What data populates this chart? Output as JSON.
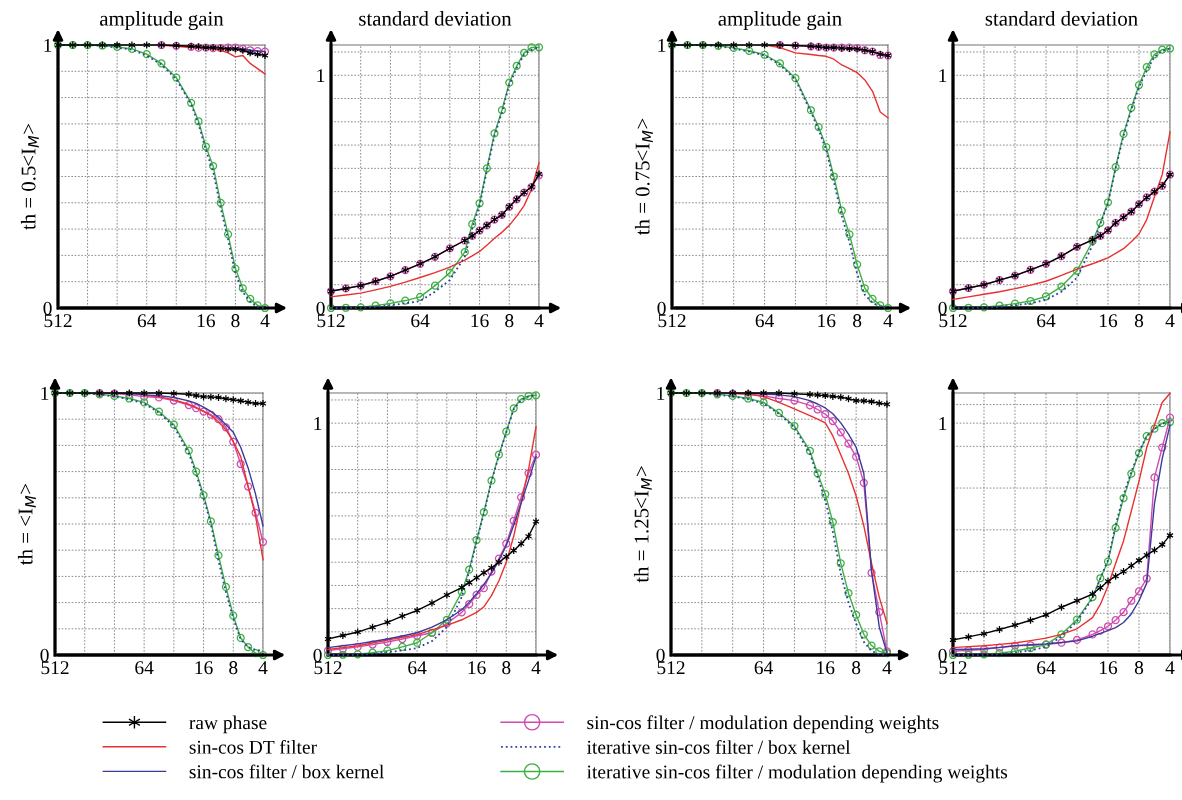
{
  "chart_data": [
    {
      "type": "line",
      "title": "amplitude gain",
      "ylabel": "th = 0.5<I$_{M}$>",
      "legend": "bottom",
      "grid": true,
      "log": "x",
      "xlim": [
        512,
        4
      ],
      "xticks": [
        512,
        {
          "value": 256,
          "label": null
        },
        {
          "value": 128,
          "label": null
        },
        64,
        {
          "value": 32,
          "label": null
        },
        16,
        8,
        4
      ],
      "ylim": [
        0,
        1
      ],
      "yticks": [
        0,
        {
          "value": 0.1,
          "label": null
        },
        {
          "value": 0.2,
          "label": null
        },
        {
          "value": 0.3,
          "label": null
        },
        {
          "value": 0.4,
          "label": null
        },
        {
          "value": 0.5,
          "label": null
        },
        {
          "value": 0.6,
          "label": null
        },
        {
          "value": 0.7,
          "label": null
        },
        {
          "value": 0.8,
          "label": null
        },
        {
          "value": 0.9,
          "label": null
        },
        1
      ],
      "x": [
        512,
        362,
        256,
        181,
        128,
        90.5,
        64,
        45.3,
        32,
        22.6,
        19,
        16,
        13.5,
        11.3,
        9.5,
        8,
        6.73,
        5.66,
        4.76,
        4
      ],
      "series": [
        {
          "name": "raw phase",
          "color": "#000000",
          "marker": "cross",
          "values": [
            1,
            1,
            1,
            1,
            1,
            1,
            1,
            1,
            0.998,
            0.995,
            0.993,
            0.99,
            0.99,
            0.988,
            0.985,
            0.985,
            0.98,
            0.97,
            0.965,
            0.96
          ]
        },
        {
          "name": "sin-cos DT filter",
          "color": "#e8312f",
          "values": [
            null,
            null,
            null,
            null,
            null,
            null,
            null,
            1,
            0.995,
            0.99,
            0.99,
            0.99,
            0.985,
            0.98,
            0.97,
            0.955,
            0.96,
            0.93,
            0.91,
            0.89
          ]
        },
        {
          "name": "sin-cos filter / box kernel",
          "color": "#3a3a9a",
          "values": [
            null,
            null,
            null,
            null,
            null,
            null,
            null,
            null,
            null,
            null,
            null,
            null,
            null,
            null,
            null,
            0.985,
            0.983,
            0.98,
            0.977,
            0.975
          ]
        },
        {
          "name": "sin-cos filter / modulation depending weights",
          "color": "#d04ab0",
          "marker": "circle",
          "values": [
            null,
            null,
            null,
            null,
            null,
            null,
            null,
            1,
            0.997,
            0.993,
            0.99,
            0.99,
            0.988,
            0.988,
            0.99,
            0.99,
            0.985,
            0.98,
            0.977,
            0.975
          ]
        },
        {
          "name": "iterative sin-cos filter / box kernel",
          "color": "#3040a0",
          "line_style": "dotted",
          "values": [
            1,
            1,
            1,
            0.997,
            0.99,
            0.982,
            0.96,
            0.925,
            0.87,
            0.775,
            0.7,
            0.6,
            0.52,
            0.38,
            0.26,
            0.13,
            0.06,
            0.025,
            0.005,
            0
          ]
        },
        {
          "name": "iterative sin-cos filter / modulation depending weights",
          "color": "#3cb043",
          "marker": "circle",
          "values": [
            1,
            1,
            1,
            0.998,
            0.993,
            0.985,
            0.965,
            0.93,
            0.876,
            0.78,
            0.71,
            0.614,
            0.54,
            0.4,
            0.28,
            0.15,
            0.075,
            0.035,
            0.01,
            0
          ]
        }
      ]
    },
    {
      "type": "line",
      "title": "standard deviation",
      "grid": true,
      "log": "x",
      "xlim": [
        512,
        4
      ],
      "xticks": [
        512,
        {
          "value": 256,
          "label": null
        },
        {
          "value": 128,
          "label": null
        },
        64,
        {
          "value": 32,
          "label": null
        },
        16,
        8,
        4
      ],
      "ylim": [
        0,
        1.13
      ],
      "yticks": [
        0,
        {
          "value": 0.1,
          "label": null
        },
        {
          "value": 0.2,
          "label": null
        },
        {
          "value": 0.3,
          "label": null
        },
        {
          "value": 0.4,
          "label": null
        },
        {
          "value": 0.5,
          "label": null
        },
        {
          "value": 0.6,
          "label": null
        },
        {
          "value": 0.7,
          "label": null
        },
        {
          "value": 0.8,
          "label": null
        },
        {
          "value": 0.9,
          "label": null
        },
        1,
        {
          "value": 1.1,
          "label": null
        }
      ],
      "x": [
        512,
        362,
        256,
        181,
        128,
        90.5,
        64,
        45.3,
        32,
        22.6,
        19,
        16,
        13.5,
        11.3,
        9.5,
        8,
        6.73,
        5.66,
        4.76,
        4
      ],
      "series": [
        {
          "color": "#000000",
          "marker": "cross",
          "values": [
            0.072,
            0.084,
            0.096,
            0.115,
            0.136,
            0.163,
            0.19,
            0.22,
            0.256,
            0.29,
            0.31,
            0.333,
            0.355,
            0.38,
            0.4,
            0.435,
            0.467,
            0.496,
            0.52,
            0.576
          ]
        },
        {
          "color": "#e8312f",
          "values": [
            0.048,
            0.056,
            0.064,
            0.078,
            0.093,
            0.111,
            0.131,
            0.152,
            0.176,
            0.206,
            0.224,
            0.243,
            0.27,
            0.3,
            0.325,
            0.355,
            0.395,
            0.44,
            0.51,
            0.624
          ]
        },
        {
          "color": "#d04ab0",
          "marker": "circle",
          "values": [
            0.072,
            0.084,
            0.096,
            0.115,
            0.136,
            0.163,
            0.19,
            0.22,
            0.256,
            0.29,
            0.31,
            0.333,
            0.355,
            0.38,
            0.4,
            0.435,
            0.467,
            0.496,
            0.52,
            0.57
          ]
        },
        {
          "color": "#3040a0",
          "line_style": "dotted",
          "values": [
            0,
            0,
            0.001,
            0.005,
            0.012,
            0.02,
            0.03,
            0.07,
            0.12,
            0.22,
            0.34,
            0.44,
            0.59,
            0.74,
            0.84,
            0.96,
            1.03,
            1.09,
            1.11,
            1.12
          ]
        },
        {
          "color": "#3cb043",
          "marker": "circle",
          "values": [
            0,
            0.001,
            0.003,
            0.01,
            0.02,
            0.032,
            0.048,
            0.096,
            0.152,
            0.24,
            0.36,
            0.45,
            0.6,
            0.75,
            0.85,
            0.968,
            1.04,
            1.096,
            1.12,
            1.12
          ]
        }
      ]
    },
    {
      "type": "line",
      "title": "amplitude gain",
      "ylabel": "th = 0.75<I$_{M}$>",
      "grid": true,
      "log": "x",
      "xlim": [
        512,
        4
      ],
      "xticks": [
        512,
        {
          "value": 256,
          "label": null
        },
        {
          "value": 128,
          "label": null
        },
        64,
        {
          "value": 32,
          "label": null
        },
        16,
        8,
        4
      ],
      "ylim": [
        0,
        1
      ],
      "yticks": [
        0,
        {
          "value": 0.1,
          "label": null
        },
        {
          "value": 0.2,
          "label": null
        },
        {
          "value": 0.3,
          "label": null
        },
        {
          "value": 0.4,
          "label": null
        },
        {
          "value": 0.5,
          "label": null
        },
        {
          "value": 0.6,
          "label": null
        },
        {
          "value": 0.7,
          "label": null
        },
        {
          "value": 0.8,
          "label": null
        },
        {
          "value": 0.9,
          "label": null
        },
        1
      ],
      "x": [
        512,
        362,
        256,
        181,
        128,
        90.5,
        64,
        45.3,
        32,
        22.6,
        19,
        16,
        13.5,
        11.3,
        9.5,
        8,
        6.73,
        5.66,
        4.76,
        4
      ],
      "series": [
        {
          "color": "#000000",
          "marker": "cross",
          "values": [
            1,
            1,
            1,
            1,
            1,
            1,
            1,
            1,
            0.998,
            0.995,
            0.993,
            0.99,
            0.99,
            0.988,
            0.987,
            0.985,
            0.98,
            0.975,
            0.965,
            0.96
          ]
        },
        {
          "color": "#e8312f",
          "values": [
            null,
            null,
            null,
            null,
            null,
            null,
            1,
            0.99,
            0.97,
            0.964,
            0.96,
            0.957,
            0.946,
            0.924,
            0.91,
            0.895,
            0.867,
            0.824,
            0.745,
            0.723
          ]
        },
        {
          "color": "#d04ab0",
          "marker": "circle",
          "values": [
            null,
            null,
            null,
            null,
            null,
            null,
            null,
            1,
            0.998,
            0.995,
            0.993,
            0.99,
            0.99,
            0.99,
            0.99,
            0.988,
            0.98,
            0.975,
            0.962,
            0.96
          ]
        },
        {
          "color": "#3040a0",
          "line_style": "dotted",
          "values": [
            1,
            1,
            1,
            0.996,
            0.986,
            0.975,
            0.96,
            0.925,
            0.868,
            0.745,
            0.678,
            0.6,
            0.48,
            0.35,
            0.25,
            0.13,
            0.05,
            0.02,
            0.005,
            0
          ]
        },
        {
          "color": "#3cb043",
          "marker": "circle",
          "values": [
            1,
            1,
            1,
            0.997,
            0.989,
            0.978,
            0.963,
            0.93,
            0.874,
            0.752,
            0.688,
            0.612,
            0.5,
            0.37,
            0.28,
            0.165,
            0.075,
            0.035,
            0.01,
            0
          ]
        }
      ]
    },
    {
      "type": "line",
      "title": "standard deviation",
      "grid": true,
      "log": "x",
      "xlim": [
        512,
        4
      ],
      "xticks": [
        512,
        {
          "value": 256,
          "label": null
        },
        {
          "value": 128,
          "label": null
        },
        64,
        {
          "value": 32,
          "label": null
        },
        16,
        8,
        4
      ],
      "ylim": [
        0,
        1.13
      ],
      "yticks": [
        0,
        {
          "value": 0.1,
          "label": null
        },
        {
          "value": 0.2,
          "label": null
        },
        {
          "value": 0.3,
          "label": null
        },
        {
          "value": 0.4,
          "label": null
        },
        {
          "value": 0.5,
          "label": null
        },
        {
          "value": 0.6,
          "label": null
        },
        {
          "value": 0.7,
          "label": null
        },
        {
          "value": 0.8,
          "label": null
        },
        {
          "value": 0.9,
          "label": null
        },
        1,
        {
          "value": 1.1,
          "label": null
        }
      ],
      "x": [
        512,
        362,
        256,
        181,
        128,
        90.5,
        64,
        45.3,
        32,
        22.6,
        19,
        16,
        13.5,
        11.3,
        9.5,
        8,
        6.73,
        5.66,
        4.76,
        4
      ],
      "series": [
        {
          "color": "#000000",
          "marker": "cross",
          "values": [
            0.072,
            0.086,
            0.1,
            0.12,
            0.139,
            0.164,
            0.19,
            0.223,
            0.263,
            0.293,
            0.31,
            0.334,
            0.366,
            0.39,
            0.414,
            0.446,
            0.475,
            0.5,
            0.525,
            0.573
          ]
        },
        {
          "color": "#e8312f",
          "values": [
            0.037,
            0.048,
            0.059,
            0.07,
            0.083,
            0.098,
            0.115,
            0.14,
            0.167,
            0.19,
            0.203,
            0.215,
            0.235,
            0.255,
            0.285,
            0.318,
            0.38,
            0.478,
            0.573,
            0.756
          ]
        },
        {
          "color": "#d04ab0",
          "marker": "circle",
          "values": [
            0.072,
            0.086,
            0.1,
            0.12,
            0.139,
            0.164,
            0.19,
            0.223,
            0.263,
            0.293,
            0.31,
            0.334,
            0.366,
            0.39,
            0.414,
            0.446,
            0.475,
            0.5,
            0.525,
            0.573
          ]
        },
        {
          "color": "#3040a0",
          "line_style": "dotted",
          "values": [
            0,
            0,
            0.001,
            0.005,
            0.012,
            0.02,
            0.035,
            0.07,
            0.13,
            0.27,
            0.36,
            0.45,
            0.6,
            0.74,
            0.85,
            0.95,
            1.02,
            1.08,
            1.105,
            1.115
          ]
        },
        {
          "color": "#3cb043",
          "marker": "circle",
          "values": [
            0,
            0.001,
            0.003,
            0.01,
            0.019,
            0.03,
            0.05,
            0.092,
            0.16,
            0.287,
            0.366,
            0.454,
            0.605,
            0.748,
            0.86,
            0.958,
            1.035,
            1.09,
            1.11,
            1.115
          ]
        }
      ]
    },
    {
      "type": "line",
      "ylabel": "th = <I$_{M}$>",
      "grid": true,
      "log": "x",
      "xlim": [
        512,
        4
      ],
      "xticks": [
        512,
        {
          "value": 256,
          "label": null
        },
        {
          "value": 128,
          "label": null
        },
        64,
        {
          "value": 32,
          "label": null
        },
        16,
        8,
        4
      ],
      "ylim": [
        0,
        1
      ],
      "yticks": [
        0,
        {
          "value": 0.1,
          "label": null
        },
        {
          "value": 0.2,
          "label": null
        },
        {
          "value": 0.3,
          "label": null
        },
        {
          "value": 0.4,
          "label": null
        },
        {
          "value": 0.5,
          "label": null
        },
        {
          "value": 0.6,
          "label": null
        },
        {
          "value": 0.7,
          "label": null
        },
        {
          "value": 0.8,
          "label": null
        },
        {
          "value": 0.9,
          "label": null
        },
        1
      ],
      "x": [
        512,
        362,
        256,
        181,
        128,
        90.5,
        64,
        45.3,
        32,
        22.6,
        19,
        16,
        13.5,
        11.3,
        9.5,
        8,
        6.73,
        5.66,
        4.76,
        4
      ],
      "series": [
        {
          "color": "#000000",
          "marker": "cross",
          "values": [
            1,
            1,
            1,
            1,
            1,
            1,
            1,
            1,
            0.998,
            0.995,
            0.99,
            0.986,
            0.985,
            0.983,
            0.978,
            0.974,
            0.97,
            0.965,
            0.96,
            0.96
          ]
        },
        {
          "color": "#e8312f",
          "values": [
            null,
            null,
            null,
            null,
            null,
            null,
            0.991,
            0.986,
            0.974,
            0.957,
            0.945,
            0.931,
            0.914,
            0.889,
            0.86,
            0.814,
            0.757,
            0.643,
            0.53,
            0.364
          ]
        },
        {
          "color": "#3a3a9a",
          "values": [
            null,
            null,
            null,
            null,
            1,
            0.998,
            0.993,
            0.99,
            0.983,
            0.97,
            0.96,
            0.946,
            0.93,
            0.907,
            0.879,
            0.85,
            0.793,
            0.714,
            0.614,
            0.493
          ]
        },
        {
          "color": "#d04ab0",
          "marker": "circle",
          "values": [
            null,
            null,
            null,
            1,
            0.998,
            0.993,
            0.986,
            0.983,
            0.971,
            0.954,
            0.942,
            0.929,
            0.917,
            0.9,
            0.869,
            0.814,
            0.729,
            0.643,
            0.543,
            0.431
          ]
        },
        {
          "color": "#3040a0",
          "line_style": "dotted",
          "values": [
            1,
            1,
            1,
            0.994,
            0.987,
            0.976,
            0.96,
            0.925,
            0.873,
            0.77,
            0.69,
            0.6,
            0.5,
            0.36,
            0.24,
            0.14,
            0.06,
            0.03,
            0.02,
            0.015
          ]
        },
        {
          "color": "#3cb043",
          "marker": "circle",
          "values": [
            1,
            1,
            1,
            0.995,
            0.989,
            0.979,
            0.964,
            0.929,
            0.879,
            0.78,
            0.7,
            0.61,
            0.51,
            0.38,
            0.26,
            0.15,
            0.065,
            0.03,
            0.007,
            0
          ]
        }
      ]
    },
    {
      "type": "line",
      "grid": true,
      "log": "x",
      "xlim": [
        512,
        4
      ],
      "xticks": [
        512,
        {
          "value": 256,
          "label": null
        },
        {
          "value": 128,
          "label": null
        },
        64,
        {
          "value": 32,
          "label": null
        },
        16,
        8,
        4
      ],
      "ylim": [
        0,
        1.13
      ],
      "yticks": [
        0,
        {
          "value": 0.1,
          "label": null
        },
        {
          "value": 0.2,
          "label": null
        },
        {
          "value": 0.3,
          "label": null
        },
        {
          "value": 0.4,
          "label": null
        },
        {
          "value": 0.5,
          "label": null
        },
        {
          "value": 0.6,
          "label": null
        },
        {
          "value": 0.7,
          "label": null
        },
        {
          "value": 0.8,
          "label": null
        },
        {
          "value": 0.9,
          "label": null
        },
        1,
        {
          "value": 1.1,
          "label": null
        }
      ],
      "x": [
        512,
        362,
        256,
        181,
        128,
        90.5,
        64,
        45.3,
        32,
        22.6,
        19,
        16,
        13.5,
        11.3,
        9.5,
        8,
        6.73,
        5.66,
        4.76,
        4
      ],
      "series": [
        {
          "color": "#000000",
          "marker": "cross",
          "values": [
            0.069,
            0.084,
            0.099,
            0.12,
            0.141,
            0.168,
            0.192,
            0.224,
            0.259,
            0.291,
            0.312,
            0.333,
            0.355,
            0.376,
            0.4,
            0.424,
            0.451,
            0.48,
            0.512,
            0.576
          ]
        },
        {
          "color": "#e8312f",
          "values": [
            0.024,
            0.032,
            0.04,
            0.052,
            0.064,
            0.076,
            0.088,
            0.108,
            0.128,
            0.152,
            0.168,
            0.184,
            0.208,
            0.256,
            0.32,
            0.4,
            0.512,
            0.656,
            0.8,
            0.984
          ]
        },
        {
          "color": "#3a3a9a",
          "values": [
            0.032,
            0.04,
            0.048,
            0.058,
            0.069,
            0.082,
            0.096,
            0.12,
            0.152,
            0.195,
            0.228,
            0.264,
            0.304,
            0.352,
            0.408,
            0.472,
            0.56,
            0.656,
            0.752,
            0.856
          ]
        },
        {
          "color": "#d04ab0",
          "marker": "circle",
          "values": [
            0.019,
            0.027,
            0.035,
            0.045,
            0.056,
            0.069,
            0.083,
            0.096,
            0.136,
            0.184,
            0.22,
            0.259,
            0.288,
            0.36,
            0.416,
            0.48,
            0.579,
            0.68,
            0.784,
            0.864
          ]
        },
        {
          "color": "#3040a0",
          "line_style": "dotted",
          "values": [
            0,
            0,
            0.001,
            0.005,
            0.012,
            0.02,
            0.03,
            0.06,
            0.12,
            0.25,
            0.36,
            0.49,
            0.61,
            0.75,
            0.86,
            0.96,
            1.06,
            1.1,
            1.115,
            1.12
          ]
        },
        {
          "color": "#3cb043",
          "marker": "circle",
          "values": [
            0,
            0.001,
            0.003,
            0.01,
            0.019,
            0.035,
            0.053,
            0.096,
            0.152,
            0.272,
            0.368,
            0.496,
            0.616,
            0.752,
            0.864,
            0.963,
            1.064,
            1.104,
            1.117,
            1.12
          ]
        }
      ]
    },
    {
      "type": "line",
      "ylabel": "th = 1.25<I$_{M}$>",
      "grid": true,
      "log": "x",
      "xlim": [
        512,
        4
      ],
      "xticks": [
        512,
        {
          "value": 256,
          "label": null
        },
        {
          "value": 128,
          "label": null
        },
        64,
        {
          "value": 32,
          "label": null
        },
        16,
        8,
        4
      ],
      "ylim": [
        0,
        1
      ],
      "yticks": [
        0,
        {
          "value": 0.1,
          "label": null
        },
        {
          "value": 0.2,
          "label": null
        },
        {
          "value": 0.3,
          "label": null
        },
        {
          "value": 0.4,
          "label": null
        },
        {
          "value": 0.5,
          "label": null
        },
        {
          "value": 0.6,
          "label": null
        },
        {
          "value": 0.7,
          "label": null
        },
        {
          "value": 0.8,
          "label": null
        },
        {
          "value": 0.9,
          "label": null
        },
        1
      ],
      "x": [
        512,
        362,
        256,
        181,
        128,
        90.5,
        64,
        45.3,
        32,
        22.6,
        19,
        16,
        13.5,
        11.3,
        9.5,
        8,
        6.73,
        5.66,
        4.76,
        4
      ],
      "series": [
        {
          "color": "#000000",
          "marker": "cross",
          "values": [
            1,
            1,
            1,
            1,
            1,
            1,
            1,
            1,
            0.997,
            0.994,
            0.992,
            0.99,
            0.987,
            0.984,
            0.978,
            0.971,
            0.97,
            0.967,
            0.961,
            0.957
          ]
        },
        {
          "color": "#e8312f",
          "values": [
            null,
            null,
            null,
            null,
            1,
            0.996,
            0.986,
            0.964,
            0.939,
            0.914,
            0.9,
            0.886,
            0.836,
            0.764,
            0.693,
            0.607,
            0.493,
            0.35,
            0.221,
            0.121
          ]
        },
        {
          "color": "#3a3a9a",
          "values": [
            null,
            null,
            null,
            null,
            null,
            1,
            0.996,
            0.993,
            0.986,
            0.971,
            0.958,
            0.943,
            0.921,
            0.886,
            0.843,
            0.793,
            0.693,
            0.321,
            0.107,
            0.007
          ]
        },
        {
          "color": "#d04ab0",
          "marker": "circle",
          "values": [
            null,
            null,
            null,
            1,
            0.998,
            0.995,
            0.989,
            0.979,
            0.971,
            0.953,
            0.937,
            0.919,
            0.893,
            0.85,
            0.807,
            0.757,
            0.657,
            0.314,
            0.164,
            0.014
          ]
        },
        {
          "color": "#3040a0",
          "line_style": "dotted",
          "values": [
            1,
            1,
            1,
            0.994,
            0.987,
            0.976,
            0.96,
            0.92,
            0.868,
            0.77,
            0.68,
            0.59,
            0.47,
            0.31,
            0.2,
            0.12,
            0.05,
            0.015,
            0.003,
            0
          ]
        },
        {
          "color": "#3cb043",
          "marker": "circle",
          "values": [
            1,
            1,
            1,
            0.995,
            0.989,
            0.979,
            0.964,
            0.924,
            0.874,
            0.779,
            0.693,
            0.614,
            0.507,
            0.35,
            0.236,
            0.153,
            0.079,
            0.036,
            0.014,
            0.007
          ]
        }
      ]
    },
    {
      "type": "line",
      "grid": true,
      "log": "x",
      "xlim": [
        512,
        4
      ],
      "xticks": [
        512,
        {
          "value": 256,
          "label": null
        },
        {
          "value": 128,
          "label": null
        },
        64,
        {
          "value": 32,
          "label": null
        },
        16,
        8,
        4
      ],
      "ylim": [
        0,
        1.13
      ],
      "yticks": [
        0,
        {
          "value": 0.18,
          "label": null
        },
        {
          "value": 0.36,
          "label": null
        },
        {
          "value": 0.54,
          "label": null
        },
        {
          "value": 0.72,
          "label": null
        },
        {
          "value": 0.9,
          "label": null
        },
        1,
        {
          "value": 1.08,
          "label": null
        }
      ],
      "x": [
        512,
        362,
        256,
        181,
        128,
        90.5,
        64,
        45.3,
        32,
        22.6,
        19,
        16,
        13.5,
        11.3,
        9.5,
        8,
        6.73,
        5.66,
        4.76,
        4
      ],
      "series": [
        {
          "color": "#000000",
          "marker": "cross",
          "values": [
            0.065,
            0.078,
            0.092,
            0.11,
            0.129,
            0.15,
            0.173,
            0.206,
            0.234,
            0.263,
            0.29,
            0.318,
            0.34,
            0.36,
            0.385,
            0.408,
            0.431,
            0.452,
            0.476,
            0.516
          ]
        },
        {
          "color": "#e8312f",
          "values": [
            0.032,
            0.036,
            0.04,
            0.046,
            0.052,
            0.062,
            0.073,
            0.089,
            0.113,
            0.161,
            0.218,
            0.298,
            0.395,
            0.492,
            0.621,
            0.75,
            0.895,
            0.992,
            1.089,
            1.129
          ]
        },
        {
          "color": "#3a3a9a",
          "values": [
            0.024,
            0.025,
            0.027,
            0.033,
            0.04,
            0.044,
            0.048,
            0.054,
            0.061,
            0.081,
            0.093,
            0.105,
            0.118,
            0.14,
            0.177,
            0.234,
            0.31,
            0.653,
            0.847,
            0.992
          ]
        },
        {
          "color": "#d04ab0",
          "marker": "circle",
          "values": [
            0.016,
            0.02,
            0.024,
            0.032,
            0.04,
            0.042,
            0.045,
            0.053,
            0.065,
            0.089,
            0.105,
            0.124,
            0.15,
            0.185,
            0.234,
            0.274,
            0.33,
            0.766,
            0.895,
            1.024
          ]
        },
        {
          "color": "#3040a0",
          "line_style": "dotted",
          "values": [
            0,
            0,
            0.001,
            0.004,
            0.01,
            0.02,
            0.035,
            0.08,
            0.145,
            0.245,
            0.33,
            0.41,
            0.56,
            0.69,
            0.79,
            0.875,
            0.945,
            0.975,
            0.998,
            1.005
          ]
        },
        {
          "color": "#3cb043",
          "marker": "circle",
          "values": [
            0,
            0.001,
            0.003,
            0.008,
            0.016,
            0.03,
            0.045,
            0.089,
            0.153,
            0.25,
            0.331,
            0.403,
            0.548,
            0.677,
            0.782,
            0.871,
            0.944,
            0.976,
            1.0,
            1.005
          ]
        }
      ]
    }
  ]
}
